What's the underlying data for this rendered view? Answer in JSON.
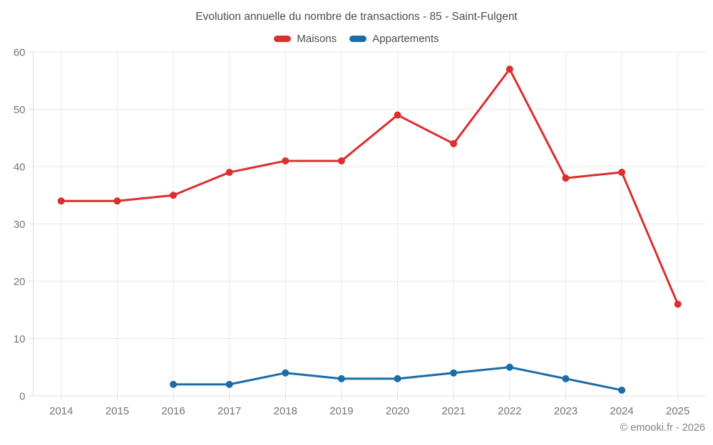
{
  "title": "Evolution annuelle du nombre de transactions - 85 - Saint-Fulgent",
  "footer": "© emooki.fr - 2026",
  "legend": [
    {
      "label": "Maisons",
      "color": "#dc2e2c"
    },
    {
      "label": "Appartements",
      "color": "#1b6ca8"
    }
  ],
  "chart_data": {
    "type": "line",
    "title": "Evolution annuelle du nombre de transactions - 85 - Saint-Fulgent",
    "categories": [
      "2014",
      "2015",
      "2016",
      "2017",
      "2018",
      "2019",
      "2020",
      "2021",
      "2022",
      "2023",
      "2024",
      "2025"
    ],
    "series": [
      {
        "name": "Maisons",
        "color": "#dc2e2c",
        "values": [
          34,
          34,
          35,
          39,
          41,
          41,
          49,
          44,
          57,
          38,
          39,
          16
        ]
      },
      {
        "name": "Appartements",
        "color": "#1b6ca8",
        "values": [
          null,
          null,
          2,
          2,
          4,
          3,
          3,
          4,
          5,
          3,
          1,
          null
        ]
      }
    ],
    "xlabel": "",
    "ylabel": "",
    "ylim": [
      0,
      60
    ],
    "ytick_step": 10,
    "yticks": [
      0,
      10,
      20,
      30,
      40,
      50,
      60
    ],
    "grid": true,
    "legend_position": "top",
    "grid_color": "#e8e8e8",
    "axis_color": "#dedede",
    "tick_color": "#757575"
  }
}
